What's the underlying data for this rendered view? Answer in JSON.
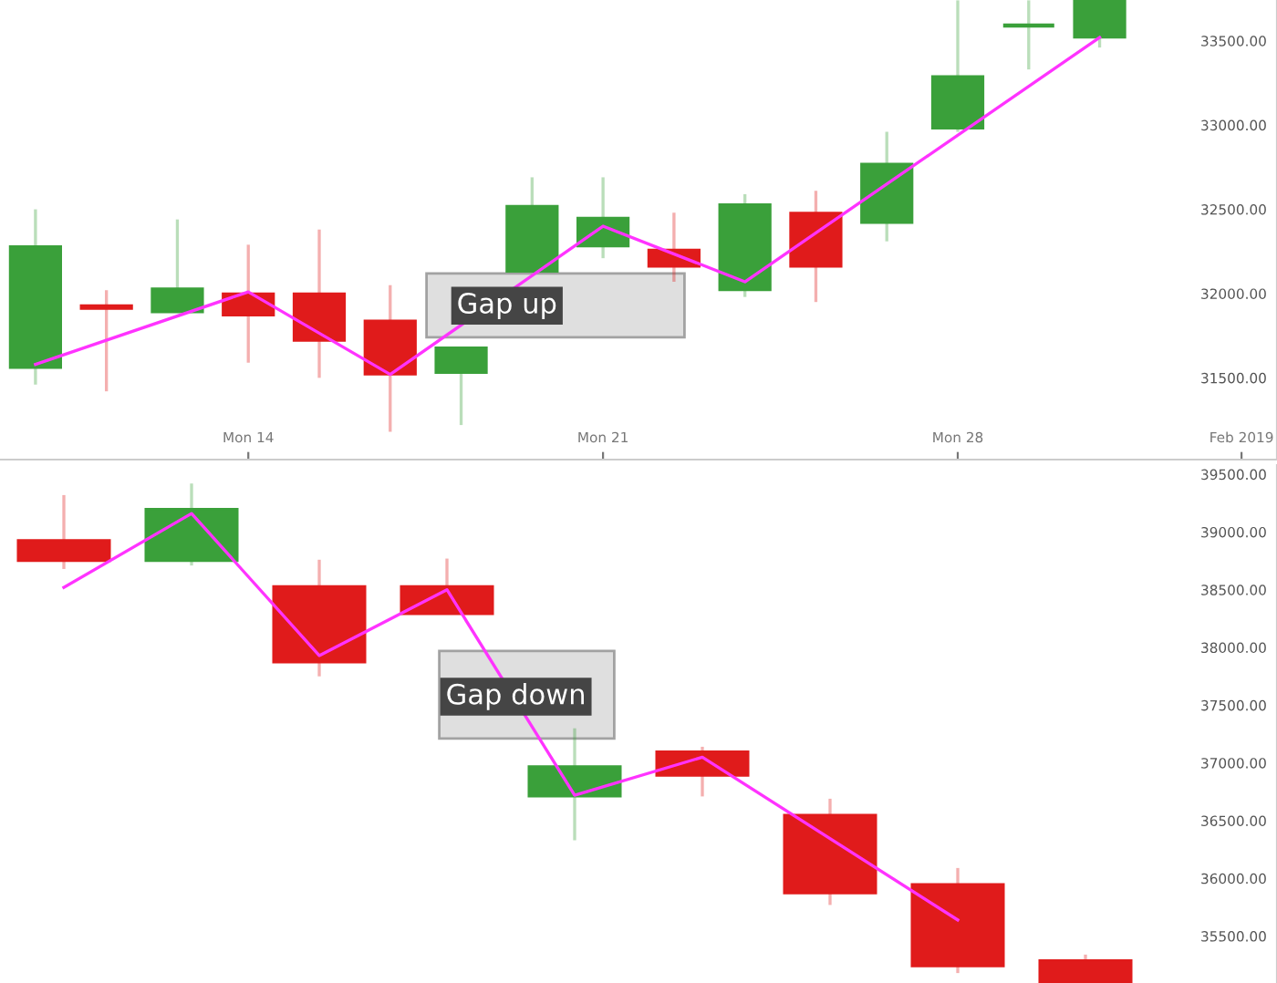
{
  "chart_data": [
    {
      "type": "candlestick",
      "categories": [
        null,
        null,
        null,
        "Mon 14",
        null,
        null,
        null,
        null,
        "Mon 21",
        null,
        null,
        null,
        null,
        "Mon 28",
        null,
        null,
        null,
        "Feb 2019"
      ],
      "ohlc": [
        [
          31560,
          32500,
          31460,
          32280
        ],
        [
          31930,
          32020,
          31420,
          31910
        ],
        [
          31890,
          32440,
          31890,
          32030
        ],
        [
          32000,
          32290,
          31590,
          31870
        ],
        [
          32000,
          32380,
          31500,
          31720
        ],
        [
          31840,
          32050,
          31180,
          31520
        ],
        [
          31530,
          31680,
          31220,
          31680
        ],
        [
          32130,
          32690,
          32130,
          32520
        ],
        [
          32280,
          32690,
          32210,
          32450
        ],
        [
          32260,
          32480,
          32070,
          32160
        ],
        [
          32020,
          32590,
          31980,
          32530
        ],
        [
          32480,
          32610,
          31950,
          32160
        ],
        [
          32420,
          32960,
          32310,
          32770
        ],
        [
          32980,
          33740,
          32960,
          33290
        ],
        [
          33590,
          33740,
          33330,
          33590
        ],
        [
          33520,
          33740,
          33460,
          33740
        ],
        null,
        null
      ],
      "colors": [
        "#3aa03a",
        "#e01b1b",
        "#3aa03a",
        "#e01b1b",
        "#e01b1b",
        "#e01b1b",
        "#3aa03a",
        "#3aa03a",
        "#3aa03a",
        "#e01b1b",
        "#3aa03a",
        "#e01b1b",
        "#3aa03a",
        "#3aa03a",
        "#3aa03a",
        "#3aa03a",
        null,
        null
      ],
      "series": [
        {
          "type": "line",
          "color": "#ff33ff",
          "values": [
            31580,
            null,
            null,
            32010,
            null,
            31520,
            null,
            null,
            32400,
            null,
            32070,
            null,
            null,
            null,
            null,
            33520,
            null,
            null
          ]
        }
      ],
      "ylim": [
        31015,
        33742
      ],
      "yticks": [
        {
          "value": 31500,
          "label": "31500.00"
        },
        {
          "value": 32000,
          "label": "32000.00"
        },
        {
          "value": 32500,
          "label": "32500.00"
        },
        {
          "value": 33000,
          "label": "33000.00"
        },
        {
          "value": 33500,
          "label": "33500.00"
        }
      ],
      "annotations": [
        "Gap up"
      ]
    },
    {
      "type": "candlestick",
      "categories": [
        null,
        null,
        null,
        null,
        null,
        null,
        null,
        null,
        null,
        null
      ],
      "ohlc": [
        [
          38930,
          39320,
          38680,
          38750
        ],
        [
          38750,
          39420,
          38710,
          39200
        ],
        [
          38530,
          38760,
          37750,
          37870
        ],
        [
          38530,
          38770,
          38290,
          38290
        ],
        [
          36710,
          37300,
          36330,
          36970
        ],
        [
          37100,
          37140,
          36710,
          36890
        ],
        [
          36550,
          36690,
          35770,
          35870
        ],
        [
          35950,
          36090,
          35180,
          35240
        ],
        [
          35290,
          35340,
          35095,
          35095
        ],
        null
      ],
      "colors": [
        "#e01b1b",
        "#3aa03a",
        "#e01b1b",
        "#e01b1b",
        "#3aa03a",
        "#e01b1b",
        "#e01b1b",
        "#e01b1b",
        "#e01b1b",
        null
      ],
      "series": [
        {
          "type": "line",
          "color": "#ff33ff",
          "values": [
            38520,
            39160,
            37930,
            38500,
            36720,
            37050,
            null,
            35640,
            null,
            null
          ]
        }
      ],
      "ylim": [
        35094,
        39580
      ],
      "yticks": [
        {
          "value": 35500,
          "label": "35500.00"
        },
        {
          "value": 36000,
          "label": "36000.00"
        },
        {
          "value": 36500,
          "label": "36500.00"
        },
        {
          "value": 37000,
          "label": "37000.00"
        },
        {
          "value": 37500,
          "label": "37500.00"
        },
        {
          "value": 38000,
          "label": "38000.00"
        },
        {
          "value": 38500,
          "label": "38500.00"
        },
        {
          "value": 39000,
          "label": "39000.00"
        },
        {
          "value": 39500,
          "label": "39500.00"
        }
      ],
      "tick_labels": "y",
      "annotations": [
        "Gap down"
      ]
    }
  ]
}
